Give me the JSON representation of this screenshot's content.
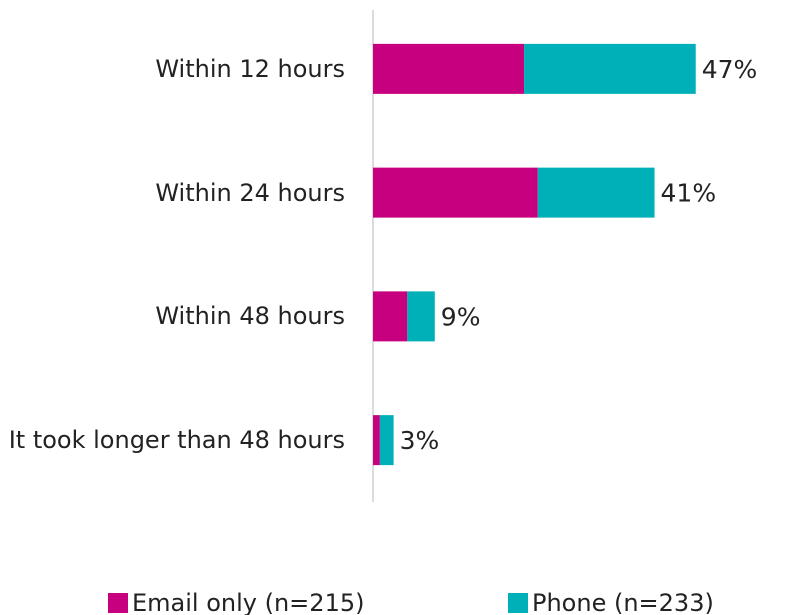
{
  "chart_data": {
    "type": "stacked_barh",
    "categories": [
      "Within 12 hours",
      "Within 24 hours",
      "Within 48 hours",
      "It took longer than 48 hours"
    ],
    "series": [
      {
        "name": "Email only (n=215)",
        "color": "#c6007e",
        "values": [
          22,
          24,
          5,
          1
        ]
      },
      {
        "name": "Phone (n=233)",
        "color": "#00b0b9",
        "values": [
          25,
          17,
          4,
          2
        ]
      }
    ],
    "totals": [
      47,
      41,
      9,
      3
    ],
    "total_labels": [
      "47%",
      "41%",
      "9%",
      "3%"
    ],
    "xlim": [
      0,
      60
    ],
    "legend": "bottom"
  }
}
